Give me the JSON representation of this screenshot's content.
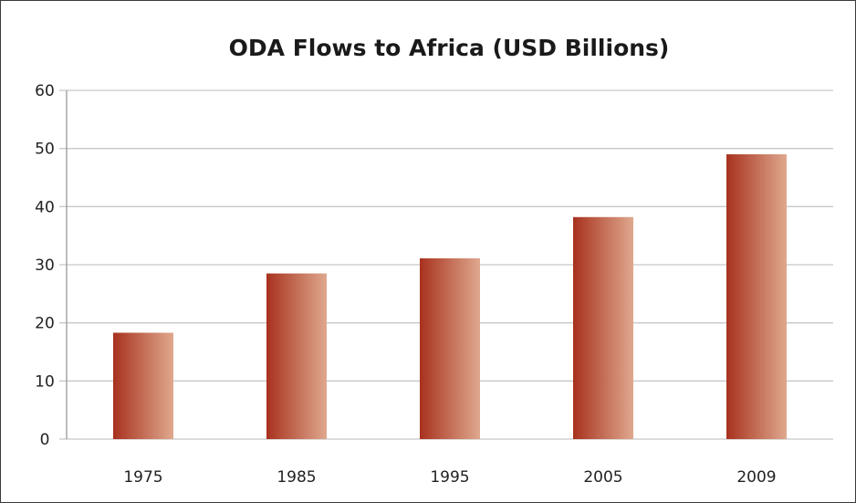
{
  "chart_data": {
    "type": "bar",
    "title": "ODA Flows to Africa (USD Billions)",
    "xlabel": "",
    "ylabel": "",
    "categories": [
      "1975",
      "1985",
      "1995",
      "2005",
      "2009"
    ],
    "values": [
      18.3,
      28.5,
      31.1,
      38.2,
      49.0
    ],
    "ylim": [
      0,
      60
    ],
    "yticks": [
      0,
      10,
      20,
      30,
      40,
      50,
      60
    ],
    "grid": true,
    "legend": "none",
    "colors": {
      "bar_dark": "#a8321e",
      "bar_light": "#dfa88e",
      "grid": "#c8c8c8",
      "axis": "#999999"
    }
  }
}
